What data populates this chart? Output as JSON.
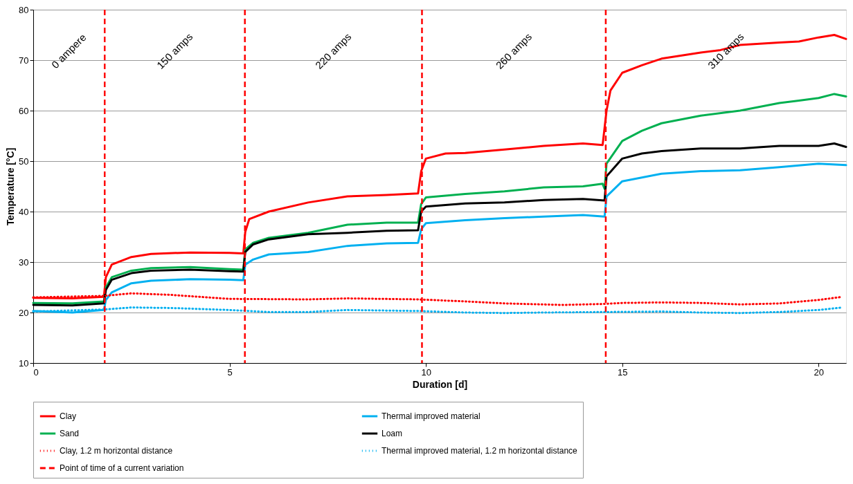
{
  "chart_data": {
    "type": "line",
    "xlabel": "Duration [d]",
    "ylabel": "Temperature [°C]",
    "xlim": [
      0,
      20.7
    ],
    "xticks": [
      0,
      5,
      10,
      15,
      20
    ],
    "ylim": [
      10,
      80
    ],
    "yticks": [
      10,
      20,
      30,
      40,
      50,
      60,
      70,
      80
    ],
    "grid": "y",
    "legend": "bottom",
    "marker": "none",
    "annotations": [
      "0 ampere",
      "150 amps",
      "220 amps",
      "260 amps",
      "310 amps"
    ],
    "ref_lines": [
      {
        "axis": "x",
        "value": 1.82,
        "label": "Point of time of a current variation",
        "color": "#ff0000",
        "line_style": "dashed"
      },
      {
        "axis": "x",
        "value": 5.39,
        "label": null,
        "color": "#ff0000",
        "line_style": "dashed"
      },
      {
        "axis": "x",
        "value": 9.9,
        "label": null,
        "color": "#ff0000",
        "line_style": "dashed"
      },
      {
        "axis": "x",
        "value": 14.58,
        "label": null,
        "color": "#ff0000",
        "line_style": "dashed"
      }
    ],
    "series": [
      {
        "name": "Clay",
        "color": "#ff0000",
        "line_style": "solid",
        "x": [
          0,
          1,
          1.8,
          1.85,
          2.0,
          2.5,
          3,
          4,
          5,
          5.35,
          5.4,
          5.5,
          6,
          7,
          8,
          9,
          9.8,
          9.88,
          10,
          10.5,
          11,
          12,
          13,
          14,
          14.5,
          14.6,
          14.7,
          15,
          15.5,
          16,
          17,
          17.5,
          18,
          19,
          19.5,
          20,
          20.4,
          20.7
        ],
        "values": [
          22.9,
          22.8,
          23.1,
          27,
          29.5,
          31,
          31.6,
          31.9,
          31.8,
          31.7,
          36,
          38.5,
          40,
          41.8,
          43,
          43.3,
          43.6,
          48,
          50.5,
          51.5,
          51.6,
          52.3,
          53,
          53.5,
          53.2,
          60,
          64,
          67.5,
          69,
          70.3,
          71.5,
          72,
          73,
          73.5,
          73.7,
          74.5,
          75,
          74.2
        ]
      },
      {
        "name": "Thermal improved material",
        "color": "#00b0f0",
        "line_style": "solid",
        "x": [
          0,
          1,
          1.8,
          1.85,
          2.0,
          2.5,
          3,
          4,
          5,
          5.35,
          5.4,
          5.6,
          6,
          7,
          8,
          9,
          9.8,
          9.88,
          10,
          11,
          12,
          13,
          14,
          14.55,
          14.6,
          15,
          16,
          17,
          18,
          19,
          20,
          20.7
        ],
        "values": [
          20.3,
          20,
          20.5,
          22.5,
          24,
          25.8,
          26.3,
          26.6,
          26.5,
          26.4,
          29.5,
          30.5,
          31.5,
          32,
          33.2,
          33.7,
          33.8,
          36.5,
          37.7,
          38.3,
          38.7,
          39,
          39.3,
          39,
          43,
          46,
          47.5,
          48,
          48.2,
          48.8,
          49.5,
          49.2
        ]
      },
      {
        "name": "Sand",
        "color": "#00b050",
        "line_style": "solid",
        "x": [
          0,
          1,
          1.8,
          1.85,
          2.0,
          2.5,
          3,
          4,
          5,
          5.35,
          5.4,
          5.6,
          6,
          7,
          8,
          9,
          9.8,
          9.88,
          10,
          11,
          12,
          13,
          14,
          14.5,
          14.55,
          14.6,
          15,
          15.5,
          16,
          17,
          18,
          19,
          19.5,
          20,
          20.4,
          20.7
        ],
        "values": [
          21.9,
          21.8,
          22.2,
          25,
          27,
          28.3,
          28.8,
          29,
          28.6,
          28.5,
          32.5,
          33.8,
          34.8,
          35.8,
          37.4,
          37.8,
          37.8,
          41.5,
          42.8,
          43.5,
          44,
          44.8,
          45,
          45.5,
          44.5,
          49.5,
          54,
          56,
          57.5,
          59,
          60,
          61.5,
          62,
          62.5,
          63.3,
          62.8
        ]
      },
      {
        "name": "Loam",
        "color": "#000000",
        "line_style": "solid",
        "x": [
          0,
          1,
          1.8,
          1.85,
          2,
          2.5,
          3,
          4,
          5,
          5.35,
          5.4,
          5.6,
          6,
          7,
          8,
          9,
          9.8,
          9.88,
          10,
          11,
          12,
          13,
          14,
          14.55,
          14.6,
          15,
          15.5,
          16,
          17,
          18,
          19,
          20,
          20.4,
          20.7
        ],
        "values": [
          21.5,
          21.4,
          21.8,
          24.5,
          26.5,
          27.8,
          28.3,
          28.5,
          28.2,
          28.1,
          32,
          33.5,
          34.5,
          35.5,
          35.8,
          36.2,
          36.3,
          40,
          41,
          41.6,
          41.8,
          42.3,
          42.5,
          42.2,
          47,
          50.5,
          51.5,
          52,
          52.5,
          52.5,
          53,
          53,
          53.5,
          52.8
        ]
      },
      {
        "name": "Clay, 1.2 m horizontal distance",
        "color": "#ff0000",
        "line_style": "dotted",
        "x": [
          0,
          1.8,
          2.5,
          3.5,
          5,
          7,
          8,
          9.8,
          11,
          12,
          13.5,
          14.5,
          15,
          16,
          17,
          18,
          19,
          20,
          20.6
        ],
        "values": [
          23,
          23.3,
          23.8,
          23.5,
          22.7,
          22.6,
          22.8,
          22.6,
          22.2,
          21.8,
          21.5,
          21.7,
          21.9,
          22,
          21.9,
          21.6,
          21.8,
          22.5,
          23.1
        ]
      },
      {
        "name": "Thermal improved material, 1.2 m horizontal distance",
        "color": "#00b0f0",
        "line_style": "dotted",
        "x": [
          0,
          1.8,
          2.5,
          3.5,
          5,
          6,
          7,
          8,
          9.8,
          11,
          12,
          13,
          14.5,
          16,
          17,
          18,
          19,
          20,
          20.6
        ],
        "values": [
          20.2,
          20.6,
          21,
          20.9,
          20.5,
          20.1,
          20.1,
          20.5,
          20.3,
          20,
          19.9,
          20,
          20.1,
          20.2,
          20,
          19.9,
          20.1,
          20.5,
          21
        ]
      }
    ]
  }
}
